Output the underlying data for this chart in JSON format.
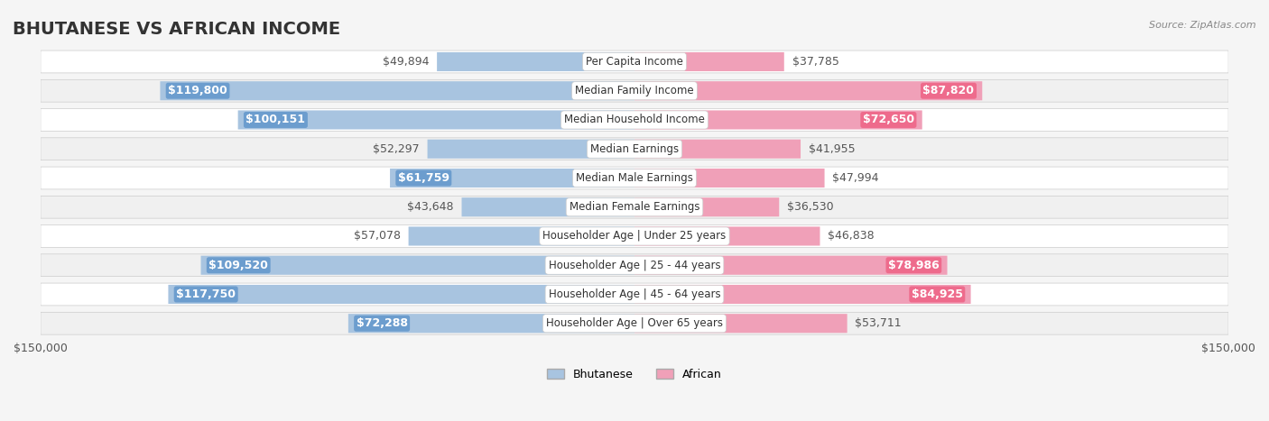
{
  "title": "BHUTANESE VS AFRICAN INCOME",
  "source": "Source: ZipAtlas.com",
  "categories": [
    "Per Capita Income",
    "Median Family Income",
    "Median Household Income",
    "Median Earnings",
    "Median Male Earnings",
    "Median Female Earnings",
    "Householder Age | Under 25 years",
    "Householder Age | 25 - 44 years",
    "Householder Age | 45 - 64 years",
    "Householder Age | Over 65 years"
  ],
  "bhutanese": [
    49894,
    119800,
    100151,
    52297,
    61759,
    43648,
    57078,
    109520,
    117750,
    72288
  ],
  "african": [
    37785,
    87820,
    72650,
    41955,
    47994,
    36530,
    46838,
    78986,
    84925,
    53711
  ],
  "bhutanese_labels": [
    "$49,894",
    "$119,800",
    "$100,151",
    "$52,297",
    "$61,759",
    "$43,648",
    "$57,078",
    "$109,520",
    "$117,750",
    "$72,288"
  ],
  "african_labels": [
    "$37,785",
    "$87,820",
    "$72,650",
    "$41,955",
    "$47,994",
    "$36,530",
    "$46,838",
    "$78,986",
    "$84,925",
    "$53,711"
  ],
  "blue_color": "#a8c4e0",
  "pink_color": "#f0a0b8",
  "blue_label_bg": "#6699cc",
  "pink_label_bg": "#ee6688",
  "max_val": 150000,
  "bg_color": "#f5f5f5",
  "row_bg": "#ffffff",
  "row_alt_bg": "#f0f0f0",
  "title_fontsize": 14,
  "label_fontsize": 9,
  "axis_label_fontsize": 9,
  "threshold_inside_label": 60000
}
